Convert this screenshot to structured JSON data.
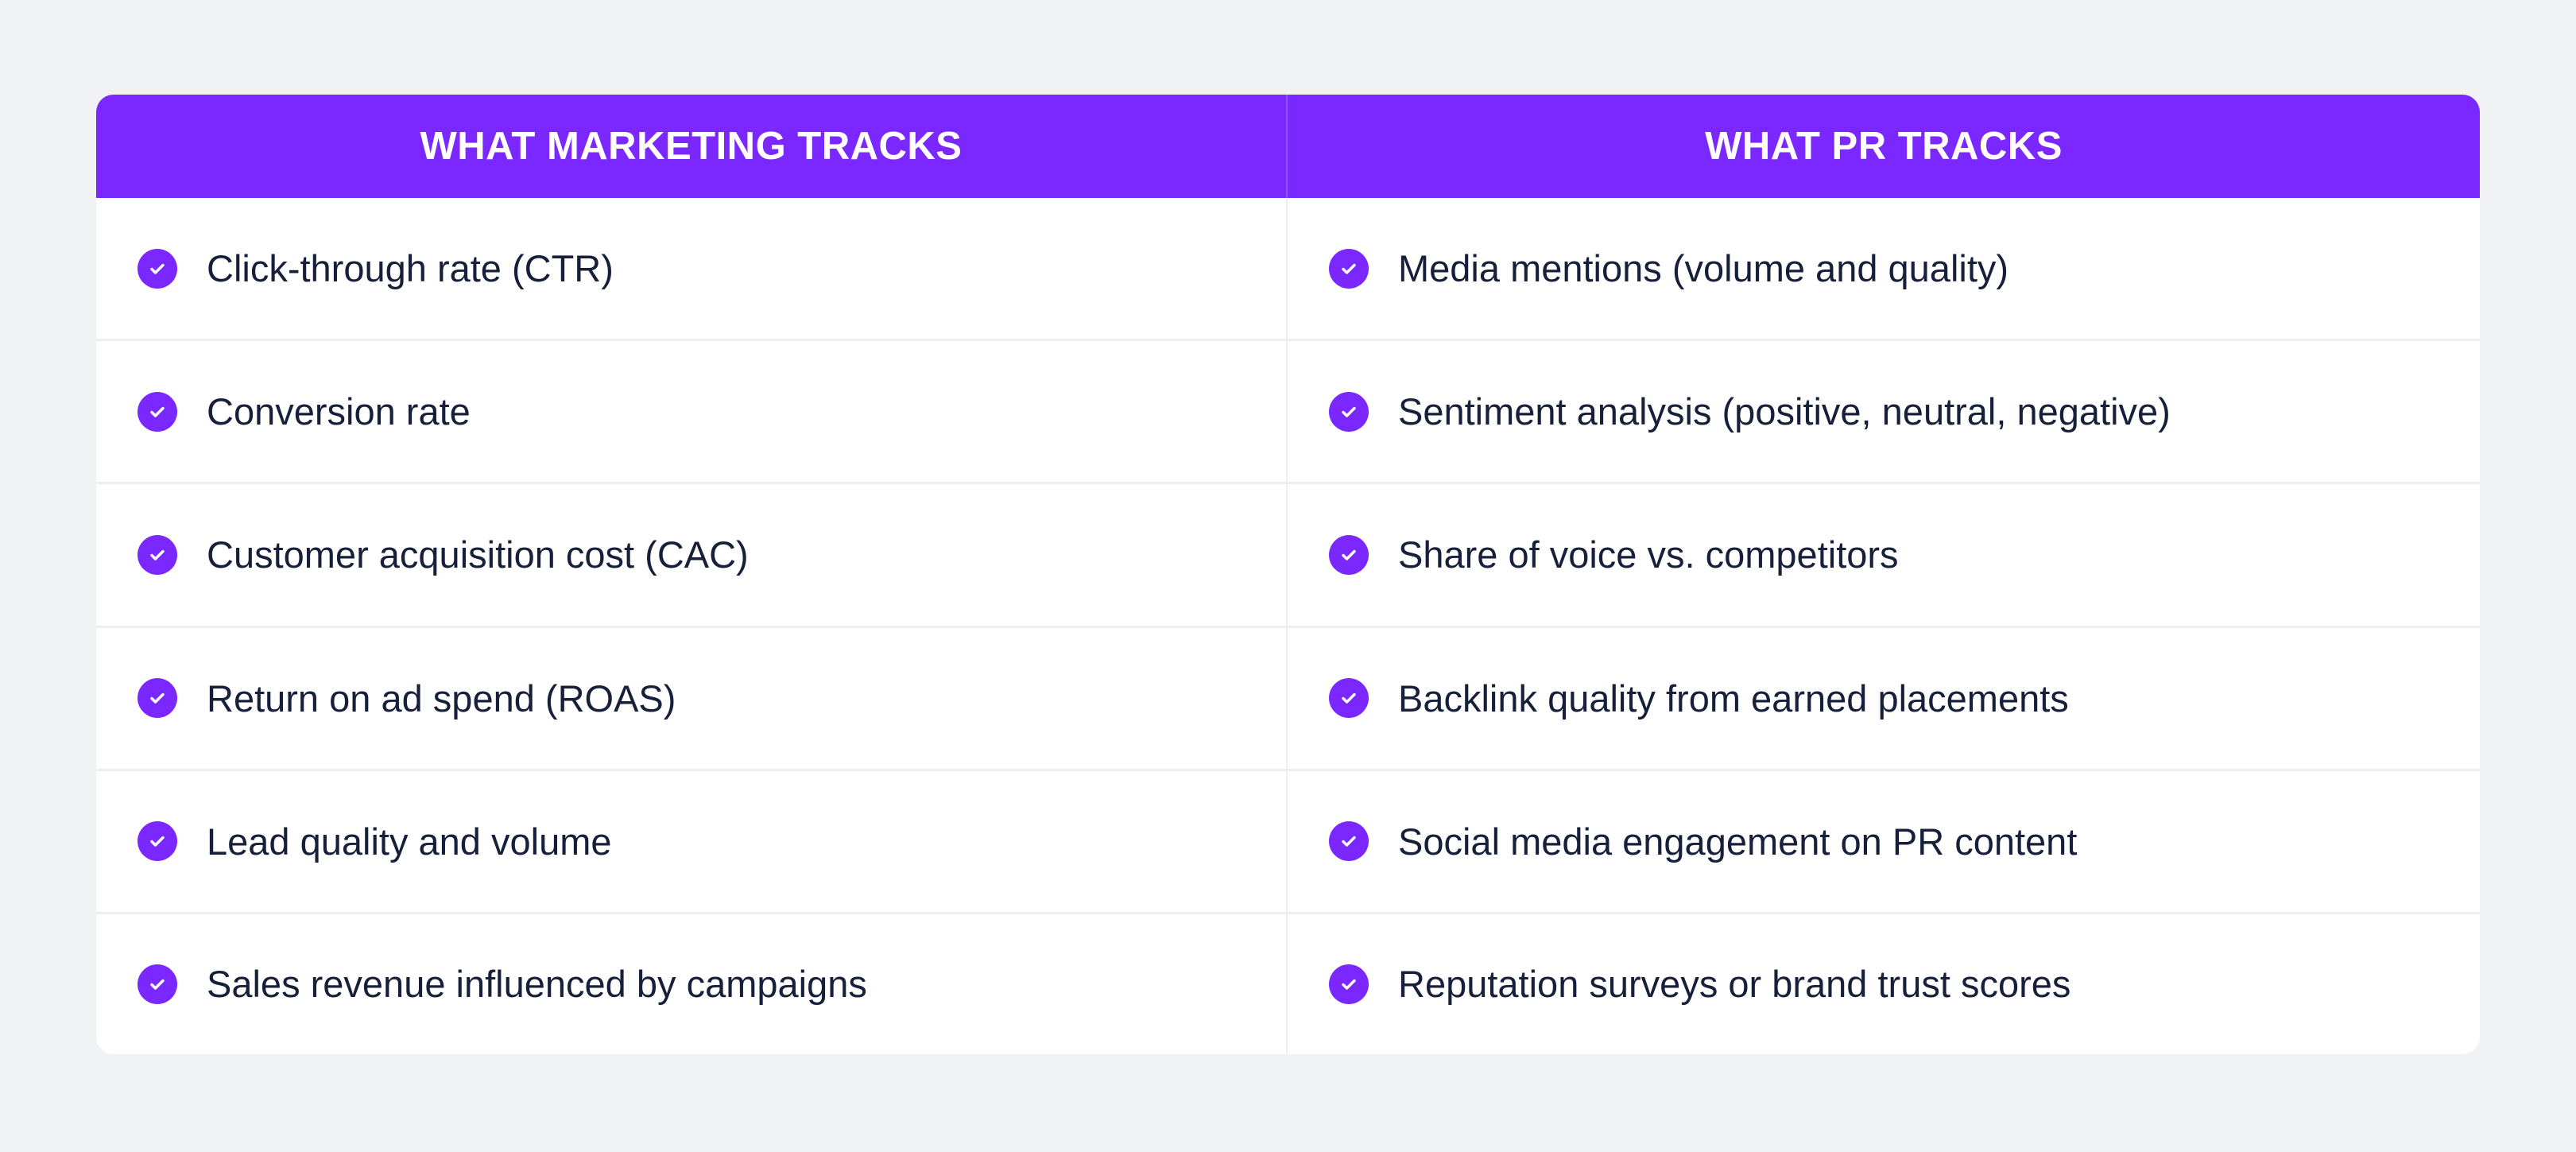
{
  "colors": {
    "accent": "#7b27ff",
    "background": "#f1f2f4",
    "text": "#17203a"
  },
  "icon": "check-circle-icon",
  "columns": [
    {
      "header": "WHAT MARKETING TRACKS",
      "items": [
        "Click-through rate (CTR)",
        "Conversion rate",
        "Customer acquisition cost (CAC)",
        "Return on ad spend (ROAS)",
        "Lead quality and volume",
        "Sales revenue influenced by campaigns"
      ]
    },
    {
      "header": "WHAT PR TRACKS",
      "items": [
        "Media mentions (volume and quality)",
        "Sentiment analysis (positive, neutral, negative)",
        "Share of voice vs. competitors",
        "Backlink quality from earned placements",
        "Social media engagement on PR content",
        "Reputation surveys or brand trust scores"
      ]
    }
  ]
}
